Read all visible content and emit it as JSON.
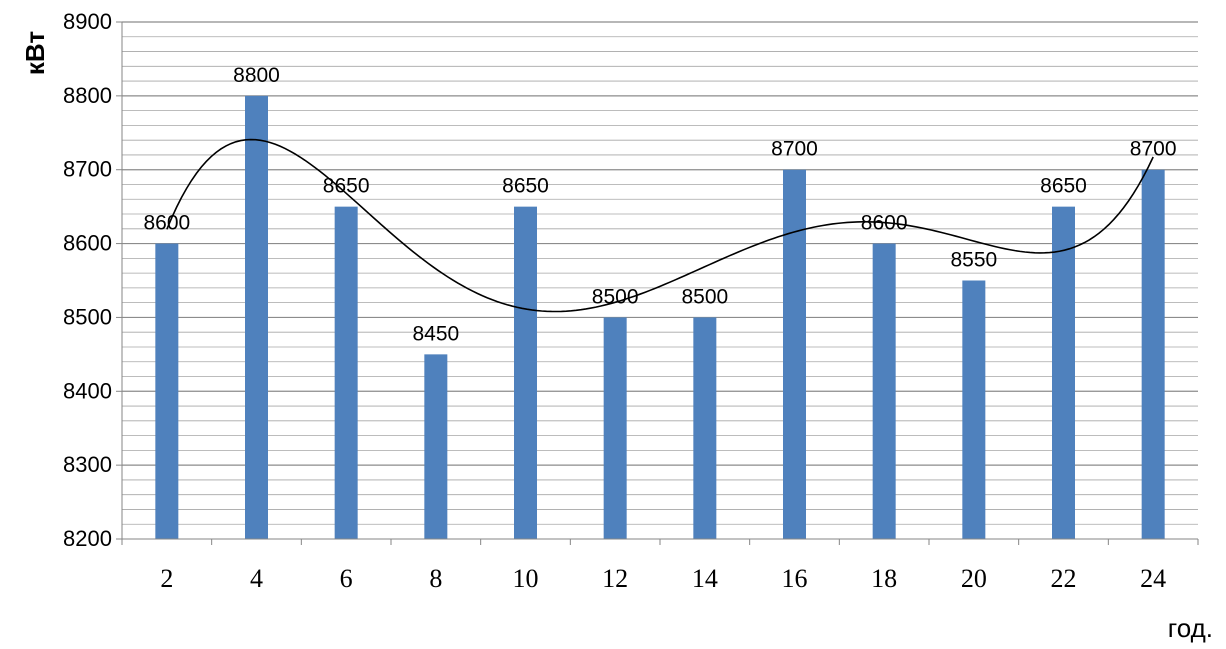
{
  "chart_data": {
    "type": "bar",
    "categories": [
      "2",
      "4",
      "6",
      "8",
      "10",
      "12",
      "14",
      "16",
      "18",
      "20",
      "22",
      "24"
    ],
    "values": [
      8600,
      8800,
      8650,
      8450,
      8650,
      8500,
      8500,
      8700,
      8600,
      8550,
      8650,
      8700
    ],
    "data_labels": [
      "8600",
      "8800",
      "8650",
      "8450",
      "8650",
      "8500",
      "8500",
      "8700",
      "8600",
      "8550",
      "8650",
      "8700"
    ],
    "trendline": {
      "type": "polynomial",
      "color": "#000000"
    },
    "title": "",
    "xlabel": "год.",
    "ylabel": "кВт",
    "ylim": [
      8200,
      8900
    ],
    "y_ticks": [
      "8200",
      "8300",
      "8400",
      "8500",
      "8600",
      "8700",
      "8800",
      "8900"
    ],
    "y_major_step": 100,
    "y_minor_step": 20,
    "grid": true,
    "bar_color": "#4F81BD",
    "grid_color": "#A6A6A6"
  }
}
